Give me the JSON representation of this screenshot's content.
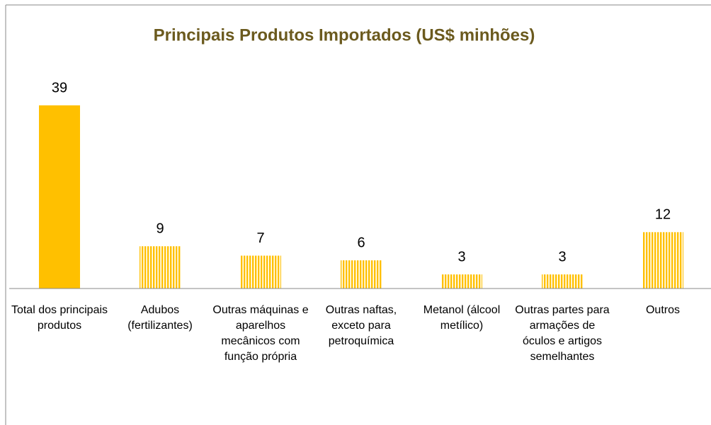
{
  "chart_data": {
    "type": "bar",
    "title": "Principais Produtos Importados (US$ minhões)",
    "categories": [
      "Total dos principais produtos",
      "Adubos (fertilizantes)",
      "Outras máquinas e aparelhos mecânicos com função própria",
      "Outras naftas, exceto para petroquímica",
      "Metanol (álcool metílico)",
      "Outras partes para armações de óculos e artigos semelhantes",
      "Outros"
    ],
    "values": [
      39,
      9,
      7,
      6,
      3,
      3,
      12
    ],
    "color": "#ffc000",
    "patterns": [
      "solid",
      "striped",
      "striped",
      "striped",
      "striped",
      "striped",
      "striped"
    ]
  }
}
